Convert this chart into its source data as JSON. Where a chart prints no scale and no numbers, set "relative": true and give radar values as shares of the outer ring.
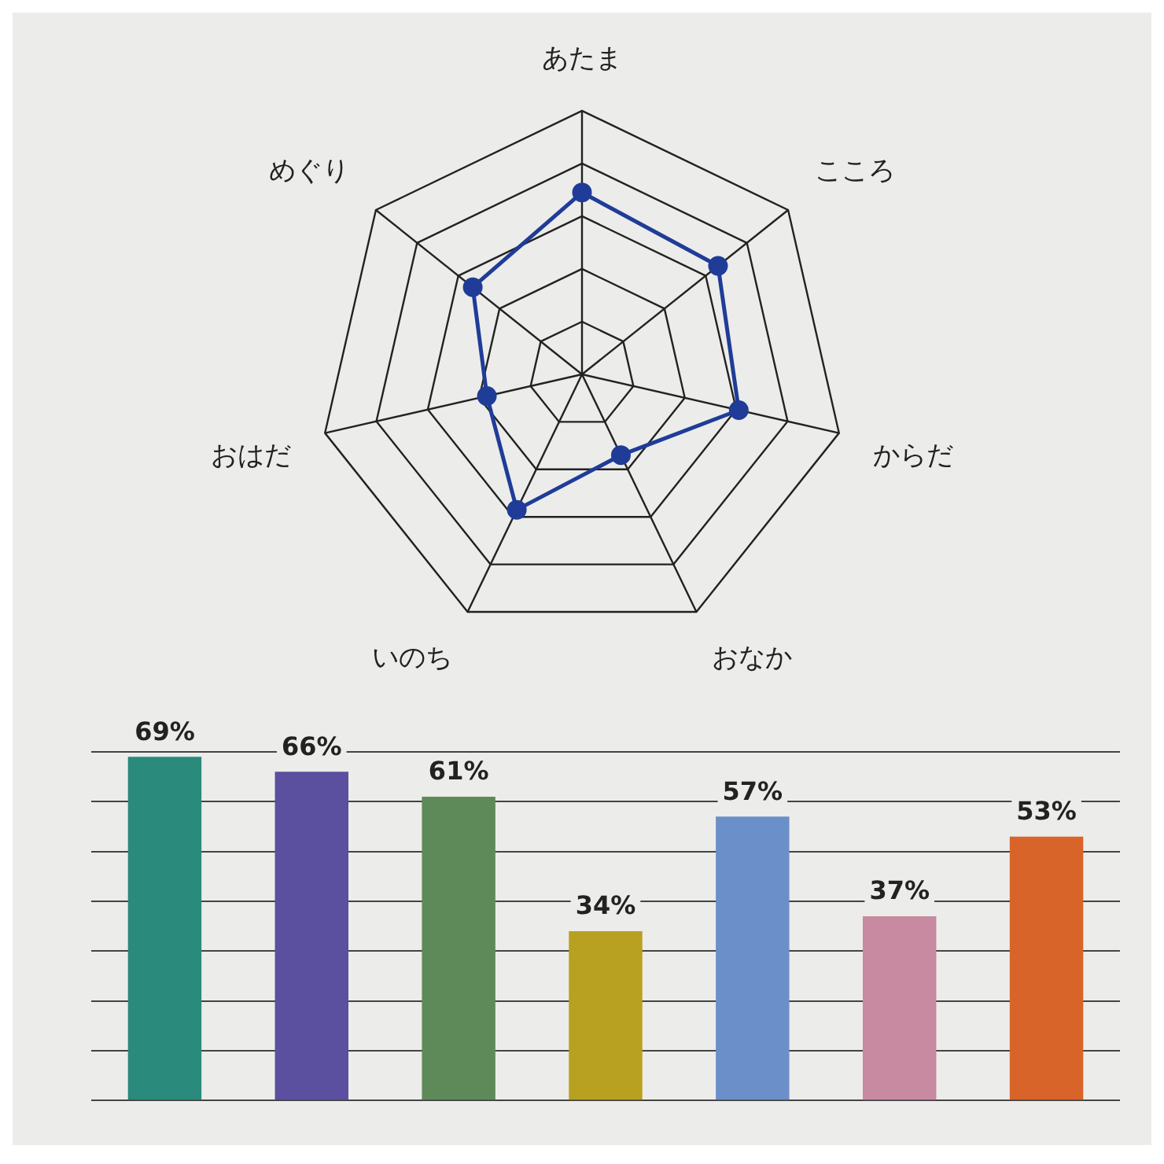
{
  "chart_data": [
    {
      "type": "radar",
      "categories": [
        "あたま",
        "こころ",
        "からだ",
        "おなか",
        "いのち",
        "おはだ",
        "めぐり"
      ],
      "series": [
        {
          "color": "#1f3c98",
          "values": [
            0.69,
            0.66,
            0.61,
            0.34,
            0.57,
            0.37,
            0.53
          ]
        }
      ],
      "relative": true,
      "marker": "circle"
    },
    {
      "type": "bar",
      "categories": [
        null,
        null,
        null,
        null,
        null,
        null,
        null
      ],
      "values": [
        69,
        66,
        61,
        34,
        57,
        37,
        53
      ],
      "colors": [
        "#2a8a7c",
        "#5b4fa0",
        "#5e8a5a",
        "#b8a020",
        "#6b8fc8",
        "#c88aa0",
        "#d8642a"
      ],
      "value_labels": [
        "69%",
        "66%",
        "61%",
        "34%",
        "57%",
        "37%",
        "53%"
      ],
      "grid": "y"
    }
  ]
}
